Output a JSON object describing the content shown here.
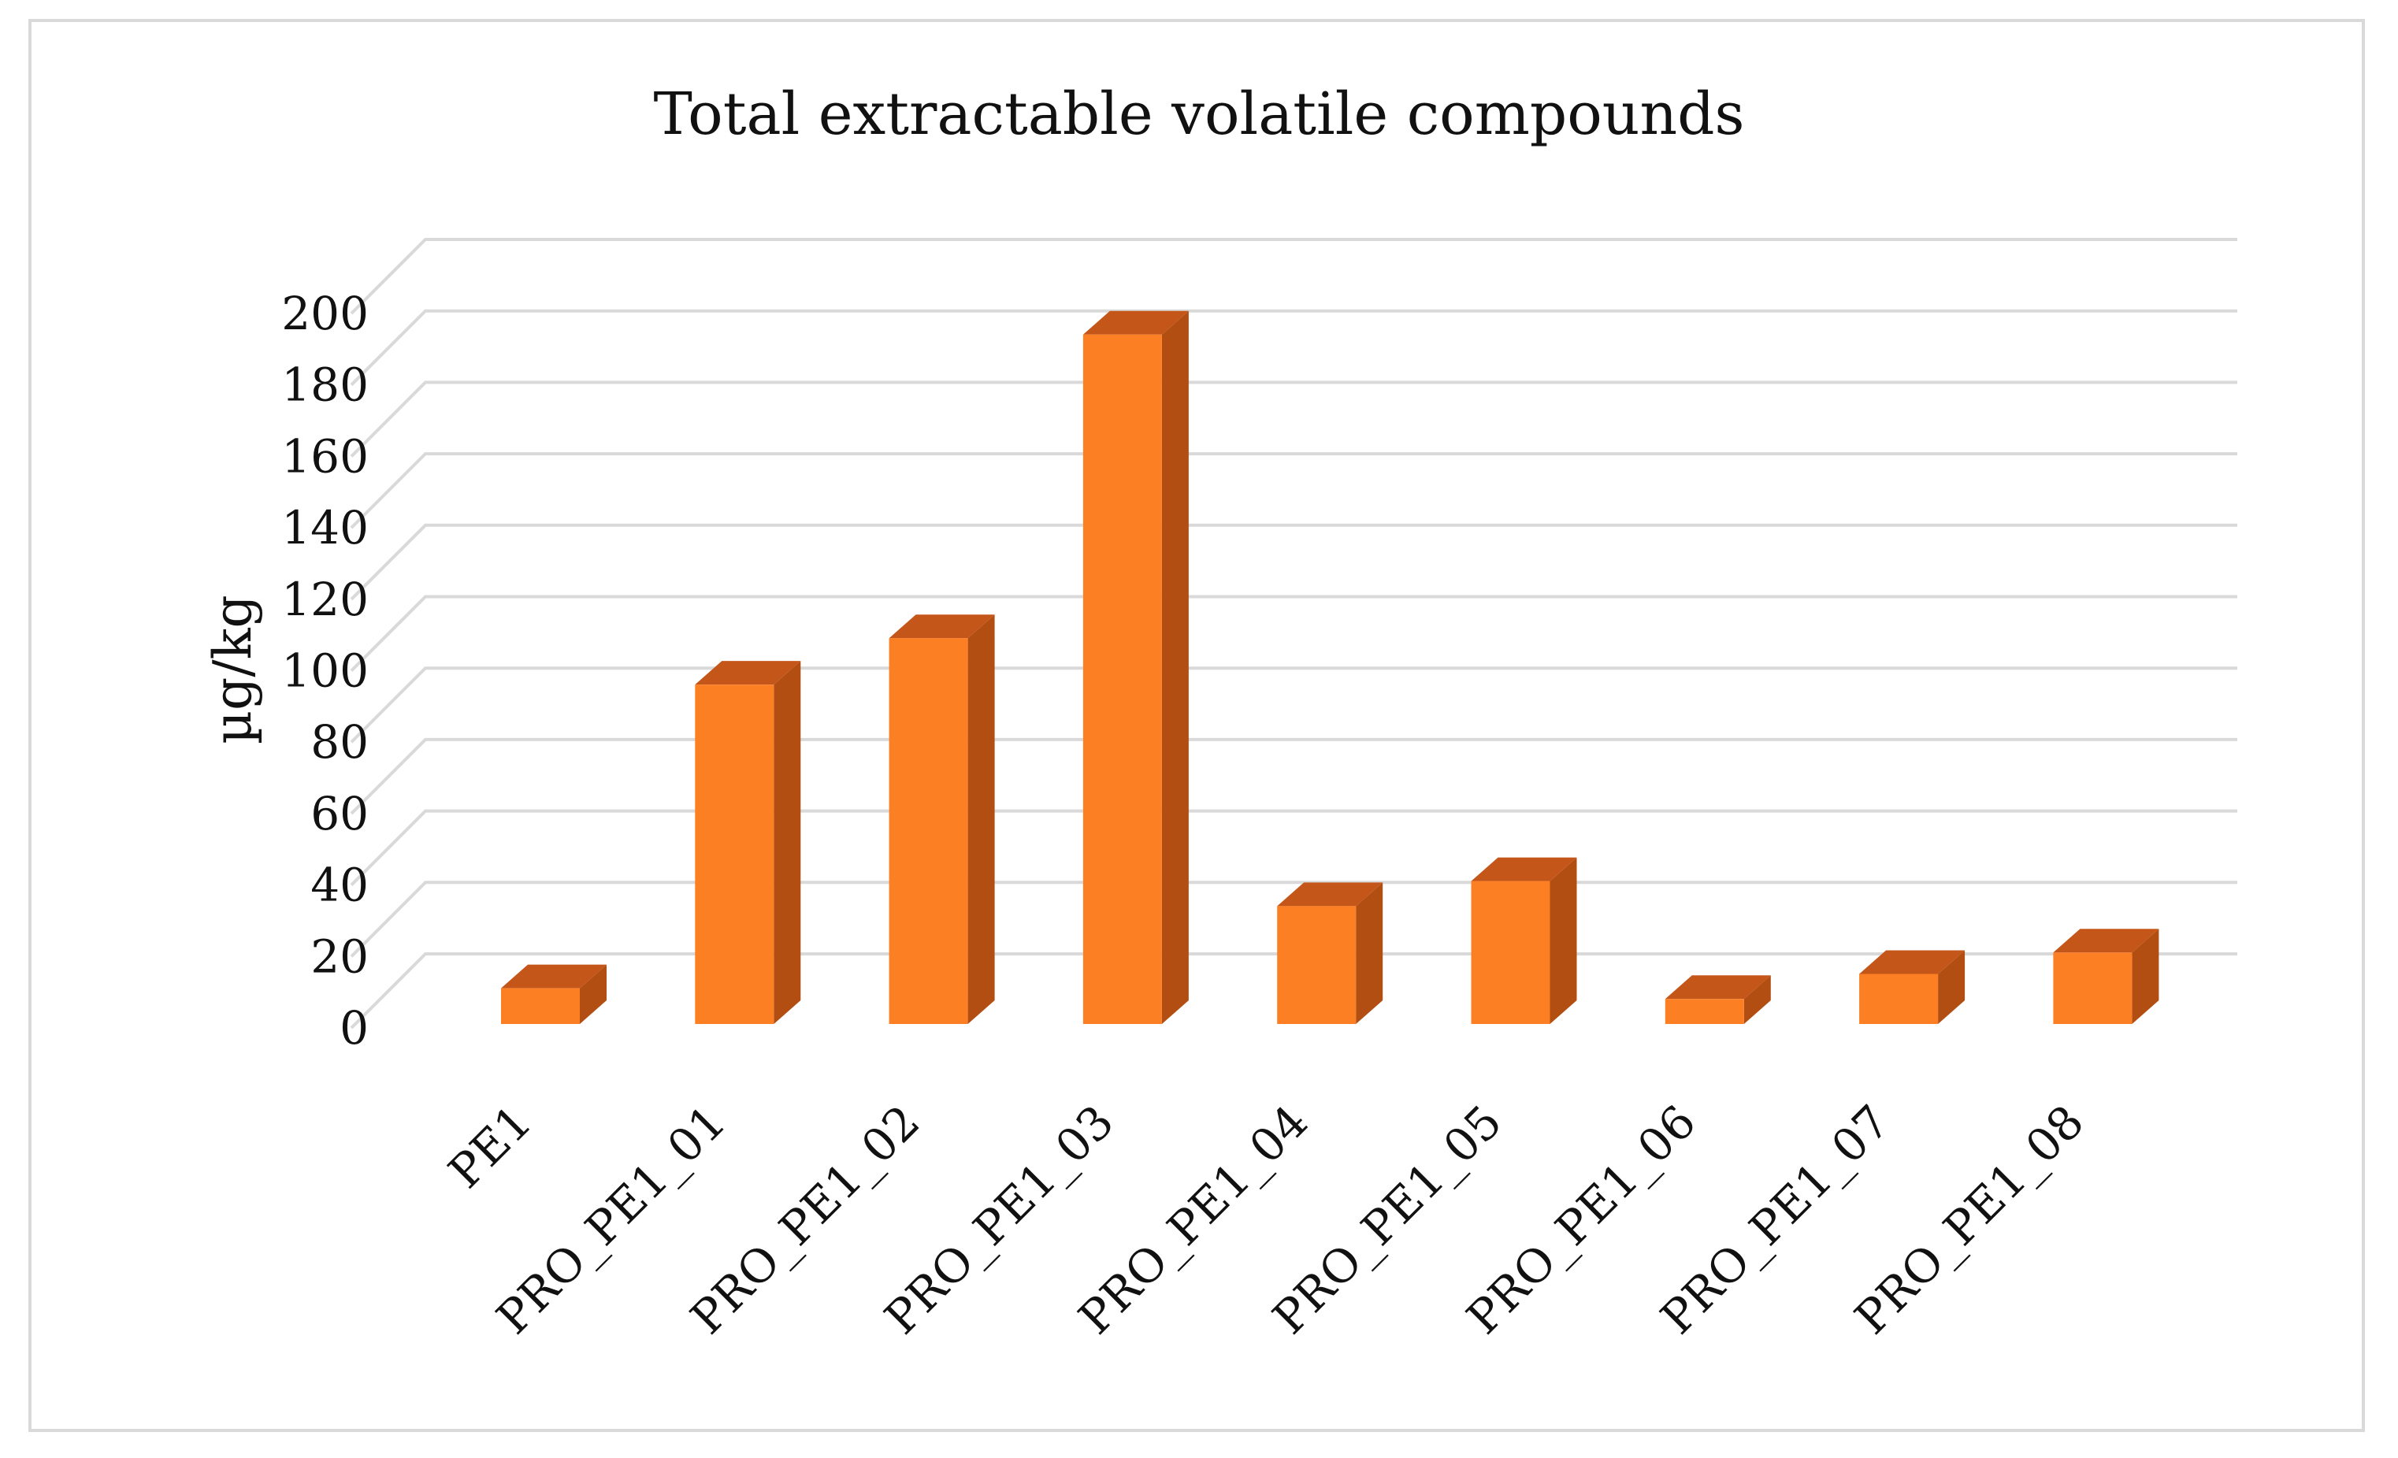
{
  "chart_data": {
    "type": "bar",
    "title": "Total extractable volatile compounds",
    "xlabel": "",
    "ylabel": "µg/kg",
    "ylim": [
      0,
      200
    ],
    "yticks": [
      0,
      20,
      40,
      60,
      80,
      100,
      120,
      140,
      160,
      180,
      200
    ],
    "categories": [
      "PE1",
      "PRO_PE1_01",
      "PRO_PE1_02",
      "PRO_PE1_03",
      "PRO_PE1_04",
      "PRO_PE1_05",
      "PRO_PE1_06",
      "PRO_PE1_07",
      "PRO_PE1_08"
    ],
    "values": [
      10,
      95,
      108,
      193,
      33,
      40,
      7,
      14,
      20
    ],
    "grid": true,
    "legend": "none",
    "style": "3d-column",
    "colors": {
      "bar_front": "#fd7f23",
      "bar_top": "#c5561a",
      "bar_side": "#b24e12",
      "grid": "#d9d9d9"
    }
  }
}
